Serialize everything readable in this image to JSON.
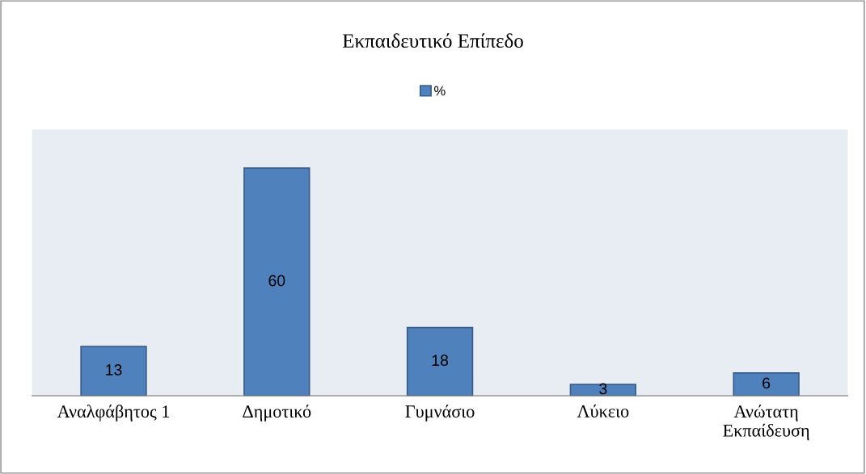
{
  "chart_data": {
    "type": "bar",
    "title": "Εκπαιδευτικό Επίπεδο",
    "categories": [
      "Αναλφάβητος 1",
      "Δημοτικό",
      "Γυμνάσιο",
      "Λύκειο",
      "Ανώτατη\nΕκπαίδευση"
    ],
    "series": [
      {
        "name": "%",
        "color": "#4f81bd",
        "values": [
          13,
          60,
          18,
          3,
          6
        ]
      }
    ],
    "data_labels": true,
    "legend": "top",
    "grid": false
  }
}
